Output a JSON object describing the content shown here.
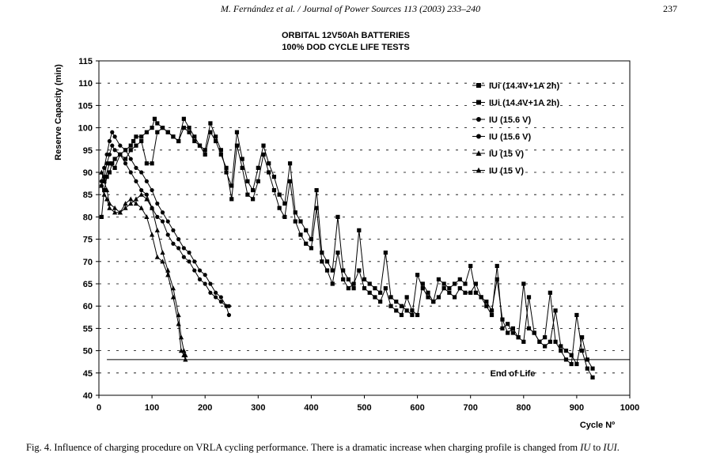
{
  "header": {
    "journal": "M. Fernández et al. / Journal of Power Sources 113 (2003) 233–240",
    "page_number": "237"
  },
  "caption": {
    "prefix": "Fig. 4.  Influence of charging procedure on VRLA cycling performance. There is a dramatic increase when charging profile is changed from ",
    "iu": "IU",
    "mid": " to ",
    "iui": "IUI",
    "suffix": "."
  },
  "chart_data": {
    "type": "line",
    "title": [
      "ORBITAL 12V50Ah BATTERIES",
      "100% DOD CYCLE LIFE TESTS"
    ],
    "xlabel": "Cycle Nº",
    "ylabel": "Reserve Capacity (min)",
    "xlim": [
      0,
      1000
    ],
    "ylim": [
      40,
      115
    ],
    "xticks": [
      0,
      100,
      200,
      300,
      400,
      500,
      600,
      700,
      800,
      900,
      1000
    ],
    "yticks": [
      40,
      45,
      50,
      55,
      60,
      65,
      70,
      75,
      80,
      85,
      90,
      95,
      100,
      105,
      110,
      115
    ],
    "grid": "horizontal dashed",
    "legend_position": "top-right",
    "annotations": [
      {
        "text": "End of Life",
        "x": 730,
        "y": 45
      }
    ],
    "reference_lines": [
      {
        "y": 48,
        "from_x": 15,
        "to_x": 1000
      }
    ],
    "series": [
      {
        "name": "IUi (14.4V+1A 2h)",
        "marker": "square",
        "x": [
          5,
          10,
          15,
          20,
          25,
          30,
          40,
          50,
          60,
          65,
          70,
          80,
          90,
          100,
          105,
          110,
          120,
          130,
          140,
          150,
          160,
          170,
          180,
          190,
          200,
          210,
          220,
          230,
          240,
          250,
          260,
          270,
          280,
          290,
          300,
          310,
          320,
          330,
          340,
          350,
          360,
          370,
          380,
          390,
          400,
          410,
          420,
          430,
          440,
          450,
          460,
          470,
          480,
          490,
          500,
          510,
          520,
          530,
          540,
          550,
          560,
          570,
          580,
          590,
          600,
          610,
          620,
          630,
          640,
          650,
          660,
          670,
          680,
          690,
          700,
          710,
          720,
          730,
          740,
          750,
          760,
          770,
          780,
          790,
          800,
          810,
          820,
          830,
          840,
          850,
          860,
          870,
          880,
          890,
          900,
          910,
          920,
          930
        ],
        "values": [
          80,
          86,
          89,
          90,
          92,
          93,
          94,
          95,
          96,
          97,
          98,
          98,
          99,
          100,
          102,
          101,
          100,
          99,
          98,
          97,
          102,
          100,
          98,
          96,
          95,
          101,
          98,
          95,
          90,
          87,
          99,
          93,
          88,
          86,
          91,
          96,
          92,
          89,
          85,
          83,
          92,
          81,
          79,
          77,
          75,
          86,
          72,
          70,
          68,
          80,
          68,
          66,
          64,
          77,
          66,
          65,
          64,
          63,
          72,
          62,
          61,
          60,
          59,
          58,
          67,
          64,
          62,
          61,
          66,
          65,
          64,
          65,
          66,
          65,
          69,
          63,
          62,
          60,
          58,
          69,
          55,
          56,
          54,
          53,
          65,
          55,
          54,
          52,
          53,
          63,
          52,
          50,
          48,
          47,
          58,
          50,
          46,
          44
        ]
      },
      {
        "name": "IUi (14.4V+1A 2h)",
        "marker": "square",
        "x": [
          10,
          20,
          30,
          40,
          50,
          60,
          70,
          80,
          90,
          100,
          110,
          120,
          130,
          140,
          150,
          160,
          170,
          180,
          190,
          200,
          210,
          220,
          230,
          240,
          250,
          260,
          270,
          280,
          290,
          300,
          310,
          320,
          330,
          340,
          350,
          360,
          370,
          380,
          390,
          400,
          410,
          420,
          430,
          440,
          450,
          460,
          470,
          480,
          490,
          500,
          510,
          520,
          530,
          540,
          550,
          560,
          570,
          580,
          590,
          600,
          610,
          620,
          630,
          640,
          650,
          660,
          670,
          680,
          690,
          700,
          710,
          720,
          730,
          740,
          750,
          760,
          770,
          780,
          790,
          800,
          810,
          820,
          830,
          840,
          850,
          860,
          870,
          880,
          890,
          900,
          910,
          920,
          930
        ],
        "values": [
          88,
          92,
          91,
          94,
          93,
          95,
          96,
          97,
          92,
          92,
          99,
          100,
          99,
          98,
          97,
          100,
          99,
          97,
          96,
          94,
          99,
          97,
          94,
          91,
          84,
          96,
          91,
          85,
          84,
          88,
          94,
          90,
          86,
          82,
          80,
          88,
          79,
          76,
          74,
          73,
          82,
          70,
          68,
          65,
          72,
          66,
          64,
          65,
          68,
          64,
          63,
          62,
          61,
          64,
          60,
          59,
          58,
          62,
          59,
          58,
          65,
          63,
          61,
          62,
          64,
          63,
          62,
          64,
          63,
          63,
          65,
          62,
          61,
          59,
          66,
          57,
          54,
          55,
          53,
          52,
          62,
          54,
          52,
          51,
          52,
          59,
          51,
          50,
          49,
          47,
          53,
          48,
          46
        ]
      },
      {
        "name": "IU (15.6 V)",
        "marker": "circle",
        "x": [
          5,
          10,
          15,
          20,
          25,
          30,
          40,
          50,
          60,
          70,
          80,
          90,
          100,
          110,
          120,
          130,
          140,
          150,
          160,
          170,
          180,
          190,
          200,
          210,
          220,
          230,
          240,
          245
        ],
        "values": [
          88,
          91,
          94,
          97,
          99,
          98,
          96,
          95,
          93,
          91,
          90,
          88,
          86,
          83,
          81,
          79,
          77,
          75,
          73,
          72,
          70,
          68,
          67,
          65,
          63,
          62,
          60,
          58
        ]
      },
      {
        "name": "IU (15.6 V)",
        "marker": "circle",
        "x": [
          5,
          10,
          15,
          20,
          25,
          30,
          40,
          50,
          60,
          70,
          80,
          90,
          100,
          110,
          120,
          130,
          140,
          150,
          160,
          170,
          180,
          190,
          200,
          210,
          220,
          230,
          240,
          245
        ],
        "values": [
          87,
          89,
          92,
          94,
          96,
          95,
          94,
          92,
          90,
          88,
          86,
          85,
          82,
          80,
          79,
          76,
          74,
          73,
          71,
          70,
          68,
          66,
          65,
          63,
          62,
          61,
          60,
          60
        ]
      },
      {
        "name": "IU (15 V)",
        "marker": "triangle",
        "x": [
          5,
          10,
          15,
          20,
          30,
          40,
          50,
          60,
          70,
          80,
          90,
          100,
          110,
          120,
          130,
          140,
          150,
          155,
          160,
          163
        ],
        "values": [
          90,
          88,
          86,
          83,
          82,
          81,
          82,
          83,
          84,
          85,
          84,
          82,
          77,
          72,
          68,
          64,
          58,
          53,
          50,
          49
        ]
      },
      {
        "name": "IU (15 V)",
        "marker": "triangle",
        "x": [
          5,
          10,
          15,
          20,
          30,
          40,
          50,
          60,
          70,
          80,
          90,
          100,
          110,
          120,
          130,
          140,
          150,
          155,
          160,
          163
        ],
        "values": [
          87,
          85,
          84,
          82,
          81,
          81,
          83,
          84,
          83,
          82,
          80,
          76,
          71,
          70,
          67,
          62,
          56,
          50,
          49,
          48
        ]
      }
    ]
  }
}
